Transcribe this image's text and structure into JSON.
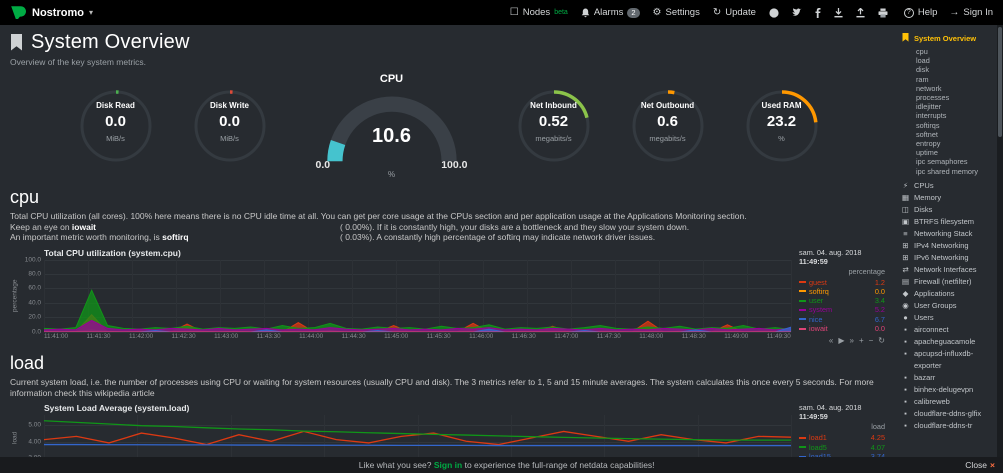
{
  "topbar": {
    "brand": "Nostromo",
    "nodes_label": "Nodes",
    "nodes_badge": "beta",
    "alarms_label": "Alarms",
    "alarms_count": "2",
    "settings_label": "Settings",
    "update_label": "Update",
    "help_label": "Help",
    "signin_label": "Sign In"
  },
  "header": {
    "title": "System Overview",
    "subtitle": "Overview of the key system metrics."
  },
  "gauges": {
    "small": [
      {
        "label": "Disk Read",
        "value": "0.0",
        "unit": "MiB/s",
        "color": "#4caf50",
        "fraction": 0.012
      },
      {
        "label": "Disk Write",
        "value": "0.0",
        "unit": "MiB/s",
        "color": "#dd4b39",
        "fraction": 0.012
      },
      {
        "label": "Net Inbound",
        "value": "0.52",
        "unit": "megabits/s",
        "color": "#8bc34a",
        "fraction": 0.21
      },
      {
        "label": "Net Outbound",
        "value": "0.6",
        "unit": "megabits/s",
        "color": "#ff9800",
        "fraction": 0.03
      },
      {
        "label": "Used RAM",
        "value": "23.2",
        "unit": "%",
        "color": "#ff9800",
        "fraction": 0.232
      }
    ],
    "cpu": {
      "title": "CPU",
      "value": "10.6",
      "min": "0.0",
      "max": "100.0",
      "unit": "%",
      "color": "#45c3ce",
      "fraction": 0.106
    }
  },
  "cpu_section": {
    "heading": "cpu",
    "desc_lines": [
      {
        "plain": "Total CPU utilization (all cores). 100% here means there is no CPU idle time at all. You can get per core usage at the CPUs section and per application usage at the Applications Monitoring section."
      },
      {
        "before": "Keep an eye on ",
        "bold": "iowait",
        "value": "( 0.00%).",
        "after": " If it is constantly high, your disks are a bottleneck and they slow your system down."
      },
      {
        "before": "An important metric worth monitoring, is ",
        "bold": "softirq",
        "value": "( 0.03%).",
        "after": " A constantly high percentage of softirq may indicate network driver issues."
      }
    ]
  },
  "load_section": {
    "heading": "load",
    "description": "Current system load, i.e. the number of processes using CPU or waiting for system resources (usually CPU and disk). The 3 metrics refer to 1, 5 and 15 minute averages. The system calculates this once every 5 seconds. For more information check this wikipedia article"
  },
  "toolbox": [
    {
      "name": "pan-backward-icon",
      "glyph": "«"
    },
    {
      "name": "play-icon",
      "glyph": "▶"
    },
    {
      "name": "pan-forward-icon",
      "glyph": "»"
    },
    {
      "name": "zoom-in-icon",
      "glyph": "+"
    },
    {
      "name": "zoom-out-icon",
      "glyph": "−"
    },
    {
      "name": "reset-zoom-icon",
      "glyph": "↻"
    }
  ],
  "chart_data": {
    "cpu": {
      "type": "area",
      "title": "Total CPU utilization (system.cpu)",
      "ylabel": "percentage",
      "units_label": "percentage",
      "date": "sam. 04. aug. 2018",
      "time": "11:49:59",
      "ylim": [
        0,
        100
      ],
      "yticks": [
        "100.0",
        "80.0",
        "60.0",
        "40.0",
        "20.0",
        "0.0"
      ],
      "x_labels": [
        "11:41:00",
        "11:41:30",
        "11:42:00",
        "11:42:30",
        "11:43:00",
        "11:43:30",
        "11:44:00",
        "11:44:30",
        "11:45:00",
        "11:45:30",
        "11:46:00",
        "11:46:30",
        "11:47:00",
        "11:47:30",
        "11:48:00",
        "11:48:30",
        "11:49:00",
        "11:49:30"
      ],
      "series": [
        {
          "name": "guest",
          "last": "1.2",
          "color": "#dc3912",
          "values": [
            0,
            0,
            0,
            24,
            0,
            0,
            0,
            0,
            0,
            11,
            0,
            0,
            0,
            0,
            0,
            0,
            13,
            0,
            0,
            0,
            0,
            0,
            9,
            0,
            0,
            0,
            0,
            12,
            0,
            0,
            0,
            0,
            8,
            0,
            0,
            0,
            0,
            0,
            15,
            0,
            0,
            0,
            0,
            10,
            0,
            0,
            0,
            1.2
          ]
        },
        {
          "name": "softirq",
          "last": "0.0",
          "color": "#ff9900",
          "values": [
            1,
            0,
            1,
            3,
            1,
            0,
            1,
            1,
            0,
            1,
            1,
            0,
            1,
            0,
            1,
            1,
            0,
            1,
            2,
            0,
            1,
            0,
            1,
            1,
            0,
            1,
            0,
            1,
            1,
            0,
            1,
            1,
            0,
            1,
            0,
            1,
            1,
            0,
            1,
            0,
            1,
            1,
            0,
            1,
            0,
            1,
            1,
            0
          ]
        },
        {
          "name": "user",
          "last": "3.4",
          "color": "#109618",
          "values": [
            5,
            4,
            6,
            58,
            9,
            5,
            4,
            6,
            5,
            8,
            4,
            6,
            5,
            7,
            4,
            9,
            5,
            6,
            12,
            5,
            4,
            7,
            5,
            6,
            4,
            8,
            5,
            6,
            10,
            4,
            6,
            5,
            7,
            4,
            6,
            9,
            5,
            4,
            7,
            5,
            8,
            4,
            6,
            5,
            9,
            4,
            6,
            3.4
          ]
        },
        {
          "name": "system",
          "last": "5.2",
          "color": "#990099",
          "values": [
            3,
            4,
            3,
            16,
            5,
            3,
            4,
            3,
            5,
            4,
            3,
            5,
            3,
            4,
            5,
            3,
            4,
            3,
            6,
            4,
            3,
            4,
            5,
            3,
            4,
            3,
            5,
            4,
            6,
            3,
            4,
            3,
            5,
            4,
            3,
            5,
            3,
            4,
            3,
            5,
            4,
            3,
            5,
            3,
            4,
            5,
            3,
            5.2
          ]
        },
        {
          "name": "nice",
          "last": "6.7",
          "color": "#3366cc",
          "values": [
            0,
            0,
            0,
            0,
            0,
            0,
            0,
            2,
            0,
            0,
            0,
            0,
            0,
            0,
            3,
            0,
            0,
            0,
            0,
            0,
            0,
            2,
            0,
            0,
            0,
            0,
            0,
            0,
            4,
            0,
            0,
            0,
            0,
            0,
            2,
            0,
            0,
            0,
            0,
            0,
            0,
            3,
            0,
            0,
            0,
            0,
            0,
            6.7
          ]
        },
        {
          "name": "iowait",
          "last": "0.0",
          "color": "#dd4477",
          "values": [
            0,
            0,
            0,
            0,
            0,
            0,
            0,
            0,
            0,
            0,
            0,
            0,
            0,
            0,
            0,
            0,
            0,
            0,
            0,
            0,
            0,
            0,
            0,
            0,
            0,
            0,
            0,
            0,
            0,
            0,
            0,
            0,
            0,
            0,
            0,
            0,
            0,
            0,
            0,
            0,
            0,
            0,
            0,
            0,
            0,
            0,
            0,
            0
          ]
        }
      ]
    },
    "load": {
      "type": "line",
      "title": "System Load Average (system.load)",
      "ylabel": "load",
      "units_label": "load",
      "date": "sam. 04. aug. 2018",
      "time": "11:49:59",
      "ylim": [
        2.8,
        5.6
      ],
      "yticks": [
        "5.00",
        "4.00",
        "3.00"
      ],
      "x_labels": [],
      "series": [
        {
          "name": "load1",
          "last": "4.25",
          "color": "#dc3912",
          "values": [
            4.1,
            4.3,
            3.9,
            4.5,
            4.2,
            3.8,
            4.4,
            4.0,
            4.6,
            4.1,
            3.9,
            4.3,
            4.5,
            4.0,
            3.8,
            4.2,
            4.6,
            4.3,
            4.0,
            4.4,
            4.1,
            3.9,
            4.3,
            4.25
          ]
        },
        {
          "name": "load5",
          "last": "4.07",
          "color": "#109618",
          "values": [
            5.25,
            5.15,
            5.05,
            4.95,
            4.9,
            4.82,
            4.75,
            4.7,
            4.62,
            4.58,
            4.52,
            4.47,
            4.42,
            4.38,
            4.33,
            4.28,
            4.24,
            4.2,
            4.16,
            4.13,
            4.1,
            4.08,
            4.07,
            4.07
          ]
        },
        {
          "name": "load15",
          "last": "3.74",
          "color": "#3366cc",
          "values": [
            3.8,
            3.8,
            3.79,
            3.79,
            3.78,
            3.78,
            3.77,
            3.77,
            3.76,
            3.76,
            3.76,
            3.75,
            3.75,
            3.75,
            3.74,
            3.74,
            3.74,
            3.74,
            3.74,
            3.74,
            3.74,
            3.74,
            3.74,
            3.74
          ]
        }
      ]
    }
  },
  "sidebar": {
    "active_label": "System Overview",
    "sub_items": [
      "cpu",
      "load",
      "disk",
      "ram",
      "network",
      "processes",
      "idlejitter",
      "interrupts",
      "softirqs",
      "softnet",
      "entropy",
      "uptime",
      "ipc semaphores",
      "ipc shared memory"
    ],
    "sections": [
      {
        "icon": "bolt-icon",
        "glyph": "⚡",
        "label": "CPUs"
      },
      {
        "icon": "memory-icon",
        "glyph": "▦",
        "label": "Memory"
      },
      {
        "icon": "hdd-icon",
        "glyph": "◫",
        "label": "Disks"
      },
      {
        "icon": "filesystem-icon",
        "glyph": "▣",
        "label": "BTRFS filesystem"
      },
      {
        "icon": "network-stack-icon",
        "glyph": "≡",
        "label": "Networking Stack"
      },
      {
        "icon": "ipv4-icon",
        "glyph": "⊞",
        "label": "IPv4 Networking"
      },
      {
        "icon": "ipv6-icon",
        "glyph": "⊞",
        "label": "IPv6 Networking"
      },
      {
        "icon": "interfaces-icon",
        "glyph": "⇄",
        "label": "Network Interfaces"
      },
      {
        "icon": "firewall-icon",
        "glyph": "▤",
        "label": "Firewall (netfilter)"
      },
      {
        "icon": "applications-icon",
        "glyph": "◆",
        "label": "Applications"
      },
      {
        "icon": "user-groups-icon",
        "glyph": "◉",
        "label": "User Groups"
      },
      {
        "icon": "users-icon",
        "glyph": "●",
        "label": "Users"
      },
      {
        "icon": "container-icon",
        "glyph": "▪",
        "label": "airconnect"
      },
      {
        "icon": "container-icon",
        "glyph": "▪",
        "label": "apacheguacamole"
      },
      {
        "icon": "container-icon",
        "glyph": "▪",
        "label": "apcupsd-influxdb-exporter"
      },
      {
        "icon": "container-icon",
        "glyph": "▪",
        "label": "bazarr"
      },
      {
        "icon": "container-icon",
        "glyph": "▪",
        "label": "binhex-delugevpn"
      },
      {
        "icon": "container-icon",
        "glyph": "▪",
        "label": "calibreweb"
      },
      {
        "icon": "container-icon",
        "glyph": "▪",
        "label": "cloudflare-ddns-glfix"
      },
      {
        "icon": "container-icon",
        "glyph": "▪",
        "label": "cloudflare-ddns-tr"
      }
    ]
  },
  "footer": {
    "prefix": "Like what you see? ",
    "signin_link": "Sign in",
    "suffix": " to experience the full-range of netdata capabilities!",
    "close_label": "Close",
    "close_icon": "×"
  }
}
